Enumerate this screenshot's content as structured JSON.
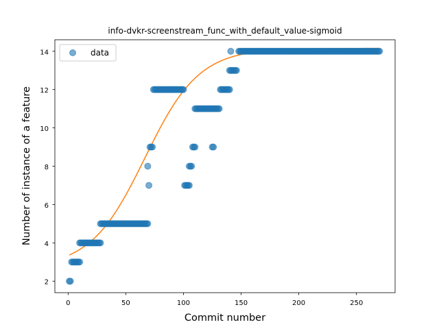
{
  "chart_data": {
    "type": "scatter",
    "title": "info-dvkr-screenstream_func_with_default_value-sigmoid",
    "xlabel": "Commit number",
    "ylabel": "Number of instance of a feature",
    "xlim": [
      -11.5,
      283.5
    ],
    "ylim": [
      1.4,
      14.6
    ],
    "xticks": [
      0,
      50,
      100,
      150,
      200,
      250
    ],
    "yticks": [
      2,
      4,
      6,
      8,
      10,
      12,
      14
    ],
    "legend": {
      "placement": "upper-left",
      "entries": [
        "data"
      ]
    },
    "colors": {
      "points": "#1f77b4",
      "fit": "#ff7f0e"
    },
    "series": [
      {
        "name": "data",
        "kind": "points",
        "segments": [
          {
            "x_from": 1,
            "x_to": 2,
            "y": 2
          },
          {
            "x_from": 3,
            "x_to": 10,
            "y": 3
          },
          {
            "x_from": 10,
            "x_to": 28,
            "y": 4
          },
          {
            "x_from": 28,
            "x_to": 69,
            "y": 5
          },
          {
            "x_from": 70,
            "x_to": 70,
            "y": 7
          },
          {
            "x_from": 69,
            "x_to": 69,
            "y": 8
          },
          {
            "x_from": 71,
            "x_to": 73,
            "y": 9
          },
          {
            "x_from": 74,
            "x_to": 100,
            "y": 12
          },
          {
            "x_from": 101,
            "x_to": 105,
            "y": 7
          },
          {
            "x_from": 105,
            "x_to": 107,
            "y": 8
          },
          {
            "x_from": 108,
            "x_to": 110,
            "y": 9
          },
          {
            "x_from": 110,
            "x_to": 125,
            "y": 11
          },
          {
            "x_from": 125,
            "x_to": 126,
            "y": 9
          },
          {
            "x_from": 126,
            "x_to": 131,
            "y": 11
          },
          {
            "x_from": 132,
            "x_to": 140,
            "y": 12
          },
          {
            "x_from": 140,
            "x_to": 146,
            "y": 13
          },
          {
            "x_from": 141,
            "x_to": 141,
            "y": 14
          },
          {
            "x_from": 148,
            "x_to": 270,
            "y": 14
          }
        ]
      },
      {
        "name": "",
        "kind": "sigmoid-fit",
        "x_range": [
          1,
          270
        ],
        "params": {
          "L": 11.45,
          "x0": 66.5,
          "k": 0.0425,
          "b": 2.7
        }
      }
    ]
  }
}
